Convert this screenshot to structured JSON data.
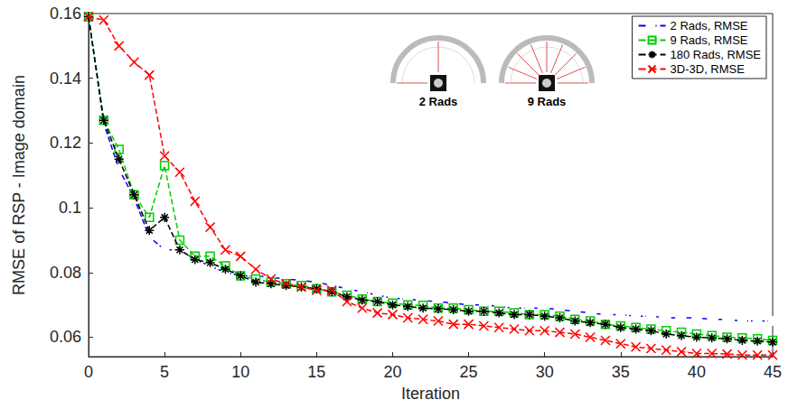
{
  "chart_data": {
    "type": "line",
    "x_label": "Iteration",
    "y_label": "RMSE of RSP - Image domain",
    "x": [
      0,
      1,
      2,
      3,
      4,
      5,
      6,
      7,
      8,
      9,
      10,
      11,
      12,
      13,
      14,
      15,
      16,
      17,
      18,
      19,
      20,
      21,
      22,
      23,
      24,
      25,
      26,
      27,
      28,
      29,
      30,
      31,
      32,
      33,
      34,
      35,
      36,
      37,
      38,
      39,
      40,
      41,
      42,
      43,
      44,
      45
    ],
    "xlim": [
      0,
      45
    ],
    "xticks": [
      0,
      5,
      10,
      15,
      20,
      25,
      30,
      35,
      40,
      45
    ],
    "ylim": [
      0.054,
      0.16
    ],
    "yticks": [
      0.06,
      0.08,
      0.1,
      0.12,
      0.14,
      0.16
    ],
    "grid": false,
    "legend": "upper right",
    "annotations": [
      "2 Rads",
      "9 Rads"
    ],
    "series": [
      {
        "name": "2 Rads, RMSE",
        "color": "#0000ff",
        "marker": "circle",
        "line_style": "dashed",
        "values": [
          0.159,
          0.126,
          0.112,
          0.103,
          0.091,
          0.087,
          0.087,
          0.084,
          0.082,
          0.08,
          0.079,
          0.079,
          0.0785,
          0.078,
          0.0775,
          0.077,
          0.076,
          0.075,
          0.074,
          0.073,
          0.072,
          0.0718,
          0.0713,
          0.071,
          0.0705,
          0.07,
          0.07,
          0.0695,
          0.069,
          0.069,
          0.069,
          0.0685,
          0.068,
          0.0675,
          0.067,
          0.067,
          0.0665,
          0.0665,
          0.066,
          0.066,
          0.066,
          0.0655,
          0.0655,
          0.065,
          0.065,
          0.065
        ]
      },
      {
        "name": "9 Rads, RMSE",
        "color": "#00cc00",
        "marker": "square",
        "line_style": "dashed",
        "values": [
          0.159,
          0.127,
          0.118,
          0.104,
          0.097,
          0.113,
          0.09,
          0.085,
          0.085,
          0.082,
          0.079,
          0.078,
          0.077,
          0.0765,
          0.076,
          0.075,
          0.074,
          0.073,
          0.0718,
          0.071,
          0.0705,
          0.07,
          0.0698,
          0.069,
          0.069,
          0.0685,
          0.068,
          0.068,
          0.0675,
          0.067,
          0.067,
          0.0665,
          0.0655,
          0.065,
          0.064,
          0.0635,
          0.063,
          0.0625,
          0.062,
          0.0615,
          0.061,
          0.0605,
          0.06,
          0.0598,
          0.0595,
          0.059
        ]
      },
      {
        "name": "180 Rads, RMSE",
        "color": "#000000",
        "marker": "asterisk",
        "line_style": "dashed",
        "values": [
          0.159,
          0.127,
          0.115,
          0.104,
          0.093,
          0.097,
          0.087,
          0.084,
          0.083,
          0.081,
          0.079,
          0.077,
          0.0765,
          0.076,
          0.0755,
          0.075,
          0.074,
          0.0725,
          0.0715,
          0.071,
          0.07,
          0.0695,
          0.069,
          0.0688,
          0.0685,
          0.068,
          0.068,
          0.0675,
          0.067,
          0.067,
          0.0665,
          0.066,
          0.065,
          0.0645,
          0.064,
          0.063,
          0.0625,
          0.062,
          0.061,
          0.0605,
          0.06,
          0.0598,
          0.0595,
          0.059,
          0.0588,
          0.0585
        ]
      },
      {
        "name": "3D-3D, RMSE",
        "color": "#ff0000",
        "marker": "x",
        "line_style": "dashed",
        "values": [
          0.159,
          0.158,
          0.15,
          0.145,
          0.141,
          0.116,
          0.111,
          0.102,
          0.094,
          0.087,
          0.085,
          0.081,
          0.078,
          0.0765,
          0.0755,
          0.0745,
          0.0745,
          0.071,
          0.069,
          0.0675,
          0.067,
          0.066,
          0.0655,
          0.065,
          0.064,
          0.064,
          0.0635,
          0.063,
          0.0625,
          0.062,
          0.062,
          0.0615,
          0.061,
          0.06,
          0.059,
          0.058,
          0.057,
          0.0565,
          0.056,
          0.0555,
          0.055,
          0.055,
          0.0548,
          0.0545,
          0.0545,
          0.0545
        ]
      }
    ]
  }
}
